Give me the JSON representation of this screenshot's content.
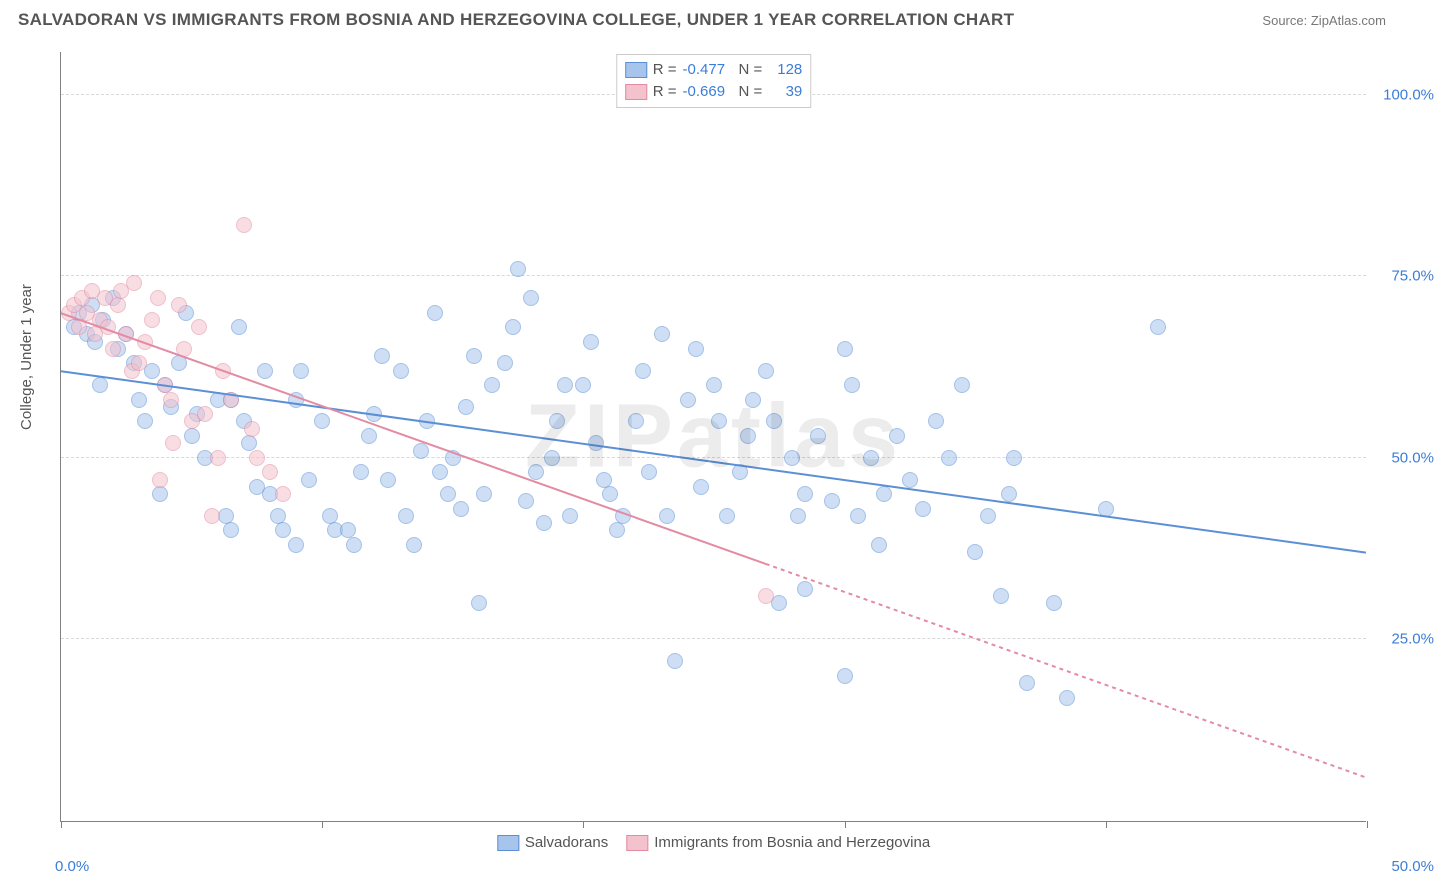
{
  "title": "SALVADORAN VS IMMIGRANTS FROM BOSNIA AND HERZEGOVINA COLLEGE, UNDER 1 YEAR CORRELATION CHART",
  "source_label": "Source:",
  "source_name": "ZipAtlas.com",
  "ylabel": "College, Under 1 year",
  "watermark": "ZIPatlas",
  "chart": {
    "type": "scatter",
    "xlim": [
      0,
      50
    ],
    "ylim": [
      0,
      106
    ],
    "y_gridlines": [
      25,
      50,
      75,
      100
    ],
    "y_tick_labels": [
      "25.0%",
      "50.0%",
      "75.0%",
      "100.0%"
    ],
    "x_ticks": [
      0,
      10,
      20,
      30,
      40,
      50
    ],
    "x_tick_labels_shown": {
      "first": "0.0%",
      "last": "50.0%"
    },
    "background_color": "#ffffff",
    "grid_color": "#d8d8d8",
    "axis_color": "#808080",
    "marker_radius": 8,
    "marker_opacity": 0.55,
    "trend_line_width": 2
  },
  "series": [
    {
      "name": "Salvadorans",
      "fill": "#a7c4ec",
      "stroke": "#5b8fd6",
      "R": "-0.477",
      "N": "128",
      "trend": {
        "x1": 0,
        "y1": 62,
        "x2": 50,
        "y2": 37,
        "dash": "none"
      },
      "points": [
        [
          0.5,
          68
        ],
        [
          0.7,
          70
        ],
        [
          1,
          67
        ],
        [
          1.2,
          71
        ],
        [
          1.3,
          66
        ],
        [
          1.6,
          69
        ],
        [
          2,
          72
        ],
        [
          2.2,
          65
        ],
        [
          2.5,
          67
        ],
        [
          2.8,
          63
        ],
        [
          1.5,
          60
        ],
        [
          3,
          58
        ],
        [
          3.2,
          55
        ],
        [
          3.5,
          62
        ],
        [
          4,
          60
        ],
        [
          4.2,
          57
        ],
        [
          4.5,
          63
        ],
        [
          5,
          53
        ],
        [
          5.2,
          56
        ],
        [
          5.5,
          50
        ],
        [
          3.8,
          45
        ],
        [
          6,
          58
        ],
        [
          6.3,
          42
        ],
        [
          6.5,
          40
        ],
        [
          7,
          55
        ],
        [
          7.2,
          52
        ],
        [
          7.5,
          46
        ],
        [
          8,
          45
        ],
        [
          8.3,
          42
        ],
        [
          8.5,
          40
        ],
        [
          9,
          58
        ],
        [
          9.2,
          62
        ],
        [
          9.5,
          47
        ],
        [
          10,
          55
        ],
        [
          10.3,
          42
        ],
        [
          10.5,
          40
        ],
        [
          11,
          40
        ],
        [
          11.2,
          38
        ],
        [
          11.5,
          48
        ],
        [
          12,
          56
        ],
        [
          12.3,
          64
        ],
        [
          12.5,
          47
        ],
        [
          13,
          62
        ],
        [
          13.2,
          42
        ],
        [
          13.5,
          38
        ],
        [
          14,
          55
        ],
        [
          14.3,
          70
        ],
        [
          14.5,
          48
        ],
        [
          15,
          50
        ],
        [
          15.3,
          43
        ],
        [
          15.5,
          57
        ],
        [
          16,
          30
        ],
        [
          16.2,
          45
        ],
        [
          16.5,
          60
        ],
        [
          17,
          63
        ],
        [
          17.3,
          68
        ],
        [
          17.5,
          76
        ],
        [
          18,
          72
        ],
        [
          18.2,
          48
        ],
        [
          18.5,
          41
        ],
        [
          19,
          55
        ],
        [
          19.3,
          60
        ],
        [
          19.5,
          42
        ],
        [
          20,
          60
        ],
        [
          20.3,
          66
        ],
        [
          20.5,
          52
        ],
        [
          21,
          45
        ],
        [
          21.5,
          42
        ],
        [
          22,
          55
        ],
        [
          22.3,
          62
        ],
        [
          22.5,
          48
        ],
        [
          23,
          67
        ],
        [
          23.2,
          42
        ],
        [
          23.5,
          22
        ],
        [
          24,
          58
        ],
        [
          24.5,
          46
        ],
        [
          25,
          60
        ],
        [
          25.2,
          55
        ],
        [
          25.5,
          42
        ],
        [
          26,
          48
        ],
        [
          26.3,
          53
        ],
        [
          26.5,
          58
        ],
        [
          27,
          62
        ],
        [
          27.5,
          30
        ],
        [
          28,
          50
        ],
        [
          28.2,
          42
        ],
        [
          28.5,
          45
        ],
        [
          29,
          53
        ],
        [
          29.5,
          44
        ],
        [
          30,
          65
        ],
        [
          30.3,
          60
        ],
        [
          30.5,
          42
        ],
        [
          31,
          50
        ],
        [
          31.5,
          45
        ],
        [
          32,
          53
        ],
        [
          32.5,
          47
        ],
        [
          33,
          43
        ],
        [
          34,
          50
        ],
        [
          34.5,
          60
        ],
        [
          35,
          37
        ],
        [
          35.5,
          42
        ],
        [
          36,
          31
        ],
        [
          36.5,
          50
        ],
        [
          37,
          19
        ],
        [
          38,
          30
        ],
        [
          38.5,
          17
        ],
        [
          40,
          43
        ],
        [
          42,
          68
        ],
        [
          28.5,
          32
        ],
        [
          30,
          20
        ],
        [
          9,
          38
        ],
        [
          6.8,
          68
        ],
        [
          4.8,
          70
        ],
        [
          13.8,
          51
        ],
        [
          15.8,
          64
        ],
        [
          18.8,
          50
        ],
        [
          21.3,
          40
        ],
        [
          24.3,
          65
        ],
        [
          27.3,
          55
        ],
        [
          31.3,
          38
        ],
        [
          33.5,
          55
        ],
        [
          36.3,
          45
        ],
        [
          6.5,
          58
        ],
        [
          7.8,
          62
        ],
        [
          11.8,
          53
        ],
        [
          14.8,
          45
        ],
        [
          17.8,
          44
        ],
        [
          20.8,
          47
        ]
      ]
    },
    {
      "name": "Immigrants from Bosnia and Herzegovina",
      "fill": "#f4c2cd",
      "stroke": "#e38ba2",
      "R": "-0.669",
      "N": "39",
      "trend": {
        "x1": 0,
        "y1": 70,
        "x2": 50,
        "y2": 6,
        "dash": "4,4",
        "solid_until_x": 27
      },
      "points": [
        [
          0.3,
          70
        ],
        [
          0.5,
          71
        ],
        [
          0.7,
          68
        ],
        [
          0.8,
          72
        ],
        [
          1,
          70
        ],
        [
          1.2,
          73
        ],
        [
          1.3,
          67
        ],
        [
          1.5,
          69
        ],
        [
          1.7,
          72
        ],
        [
          1.8,
          68
        ],
        [
          2,
          65
        ],
        [
          2.2,
          71
        ],
        [
          2.3,
          73
        ],
        [
          2.5,
          67
        ],
        [
          2.7,
          62
        ],
        [
          2.8,
          74
        ],
        [
          3,
          63
        ],
        [
          3.2,
          66
        ],
        [
          3.5,
          69
        ],
        [
          3.7,
          72
        ],
        [
          4,
          60
        ],
        [
          4.2,
          58
        ],
        [
          4.5,
          71
        ],
        [
          4.7,
          65
        ],
        [
          5,
          55
        ],
        [
          5.3,
          68
        ],
        [
          5.5,
          56
        ],
        [
          6,
          50
        ],
        [
          6.2,
          62
        ],
        [
          6.5,
          58
        ],
        [
          7,
          82
        ],
        [
          7.3,
          54
        ],
        [
          3.8,
          47
        ],
        [
          5.8,
          42
        ],
        [
          4.3,
          52
        ],
        [
          7.5,
          50
        ],
        [
          8,
          48
        ],
        [
          8.5,
          45
        ],
        [
          27,
          31
        ]
      ]
    }
  ],
  "legend_top_labels": {
    "R": "R =",
    "N": "N ="
  },
  "legend_bottom": [
    "Salvadorans",
    "Immigrants from Bosnia and Herzegovina"
  ]
}
